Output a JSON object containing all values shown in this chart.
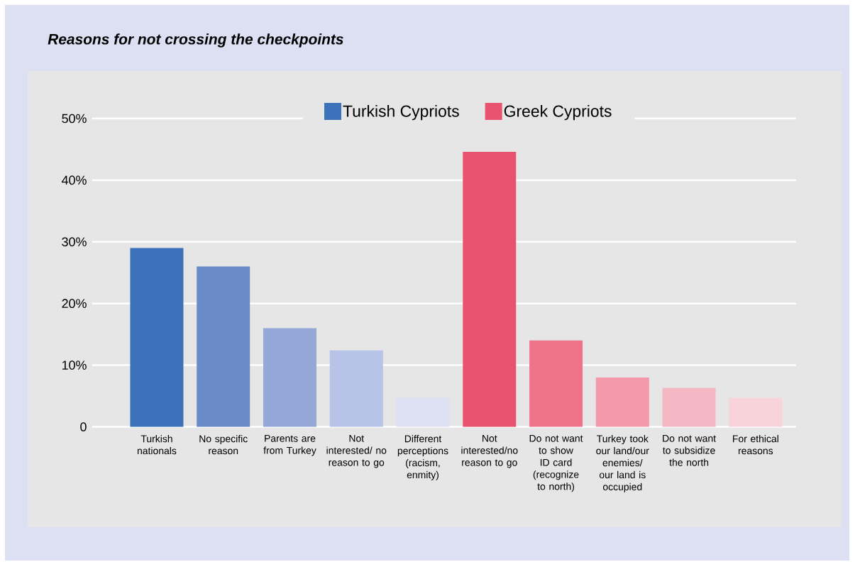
{
  "chart_data": {
    "type": "bar",
    "title": "Reasons for not crossing the checkpoints",
    "categories": [
      "Turkish nationals",
      "No specific reason",
      "Parents are from Turkey",
      "Not interested/ no reason to go",
      "Different perceptions (racism, enmity)",
      "Not interested/no reason to go",
      "Do not want to show ID card (recognize to north)",
      "Turkey took our land/our enemies/ our land is occupied",
      "Do not want to subsidize the north",
      "For ethical reasons"
    ],
    "series": [
      {
        "name": "Turkish Cypriots",
        "color": "#3b72b9",
        "colors": [
          "#3b72b9",
          "#6a8bc6",
          "#94a7d6",
          "#b7c3e7",
          "#dce0f2",
          null,
          null,
          null,
          null,
          null
        ],
        "values": [
          29,
          26,
          16,
          12.4,
          4.7,
          null,
          null,
          null,
          null,
          null
        ]
      },
      {
        "name": "Greek Cypriots",
        "color": "#e9536f",
        "colors": [
          null,
          null,
          null,
          null,
          null,
          "#e9536f",
          "#ef7489",
          "#f399aa",
          "#f6b7c4",
          "#f8d4da"
        ],
        "values": [
          null,
          null,
          null,
          null,
          null,
          44.6,
          14,
          8,
          6.3,
          4.7
        ]
      }
    ],
    "ylim": [
      0,
      50
    ],
    "yticks": [
      0,
      {
        "value": 10,
        "label": "10%"
      },
      {
        "value": 20,
        "label": "20%"
      },
      {
        "value": 30,
        "label": "30%"
      },
      {
        "value": 40,
        "label": "40%"
      },
      {
        "value": 50,
        "label": "50%"
      }
    ],
    "grid": "y",
    "legend": "top"
  }
}
